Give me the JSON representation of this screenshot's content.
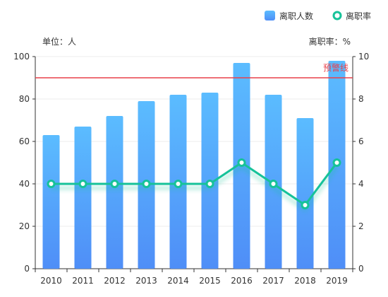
{
  "colors": {
    "bar_top": "#5bbcff",
    "bar_bottom": "#4f8ef7",
    "line": "#16c299",
    "warning": "#e8404a",
    "axis": "#333333",
    "grid": "#eeeeee"
  },
  "legend": {
    "bars_label": "离职人数",
    "line_label": "离职率"
  },
  "units": {
    "left": "单位：人",
    "right": "离职率：%"
  },
  "chart_data": {
    "type": "bar",
    "categories": [
      "2010",
      "2011",
      "2012",
      "2013",
      "2014",
      "2015",
      "2016",
      "2017",
      "2018",
      "2019"
    ],
    "series": [
      {
        "name": "离职人数",
        "type": "bar",
        "axis": "left",
        "values": [
          63,
          67,
          72,
          79,
          82,
          83,
          97,
          82,
          71,
          98
        ]
      },
      {
        "name": "离职率",
        "type": "line",
        "axis": "right",
        "values": [
          4,
          4,
          4,
          4,
          4,
          4,
          5,
          4,
          3,
          5
        ]
      }
    ],
    "y_left": {
      "range": [
        0,
        100
      ],
      "ticks": [
        "0",
        "20",
        "40",
        "60",
        "80",
        "100"
      ]
    },
    "y_right": {
      "range": [
        0,
        10
      ],
      "ticks": [
        "0",
        "2",
        "4",
        "6",
        "8",
        "10"
      ]
    },
    "reference_line": {
      "label": "预警线",
      "value": 90,
      "axis": "left"
    },
    "grid": true,
    "legend_position": "top-right"
  }
}
